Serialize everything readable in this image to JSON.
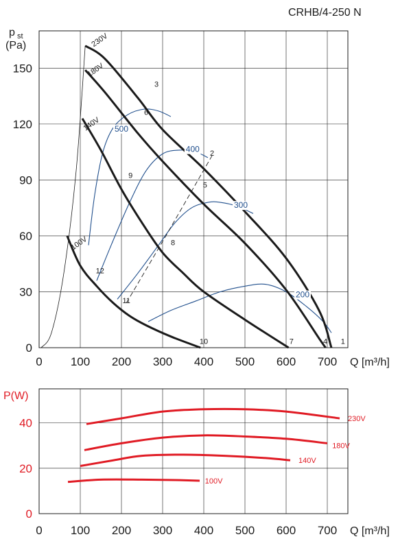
{
  "model": "CRHB/4-250 N",
  "chart_data": [
    {
      "type": "line",
      "ylabel_main": "p",
      "ylabel_sub": "st",
      "ylabel_unit": "(Pa)",
      "xlabel": "Q [m³/h]",
      "xlim": [
        0,
        750
      ],
      "ylim": [
        0,
        170
      ],
      "xticks": [
        0,
        100,
        200,
        300,
        400,
        500,
        600,
        700
      ],
      "yticks": [
        0,
        30,
        60,
        90,
        120,
        150
      ],
      "grid": true,
      "speed_curves": [
        {
          "name": "230V",
          "points": [
            [
              112,
              162
            ],
            [
              160,
              155
            ],
            [
              240,
              134
            ],
            [
              300,
              117
            ],
            [
              400,
              96
            ],
            [
              500,
              73
            ],
            [
              600,
              48
            ],
            [
              680,
              20
            ],
            [
              710,
              0
            ]
          ]
        },
        {
          "name": "180V",
          "points": [
            [
              112,
              149
            ],
            [
              160,
              137
            ],
            [
              240,
              115
            ],
            [
              300,
              100
            ],
            [
              400,
              77
            ],
            [
              500,
              56
            ],
            [
              600,
              31
            ],
            [
              680,
              5
            ],
            [
              696,
              0
            ]
          ]
        },
        {
          "name": "140V",
          "points": [
            [
              105,
              123
            ],
            [
              150,
              106
            ],
            [
              200,
              85
            ],
            [
              250,
              67
            ],
            [
              300,
              51
            ],
            [
              350,
              40
            ],
            [
              400,
              30
            ],
            [
              500,
              15
            ],
            [
              606,
              0
            ]
          ]
        },
        {
          "name": "100V",
          "points": [
            [
              68,
              60
            ],
            [
              100,
              44
            ],
            [
              140,
              33
            ],
            [
              180,
              24
            ],
            [
              220,
              17
            ],
            [
              260,
              12
            ],
            [
              320,
              6
            ],
            [
              392,
              0
            ]
          ]
        }
      ],
      "system_curves": [
        {
          "name": "",
          "points": [
            [
              5,
              0
            ],
            [
              30,
              8
            ],
            [
              60,
              40
            ],
            [
              90,
              95
            ],
            [
              112,
              162
            ]
          ]
        }
      ],
      "efficiency_curves": [
        {
          "name": "500",
          "points": [
            [
              120,
              55
            ],
            [
              135,
              82
            ],
            [
              155,
              105
            ],
            [
              180,
              118
            ],
            [
              215,
              125
            ],
            [
              255,
              128
            ],
            [
              290,
              127
            ],
            [
              320,
              124
            ]
          ]
        },
        {
          "name": "400",
          "points": [
            [
              140,
              36
            ],
            [
              175,
              55
            ],
            [
              220,
              78
            ],
            [
              260,
              95
            ],
            [
              300,
              104
            ],
            [
              340,
              106
            ],
            [
              380,
              105
            ],
            [
              410,
              102
            ]
          ]
        },
        {
          "name": "300",
          "points": [
            [
              190,
              26
            ],
            [
              240,
              40
            ],
            [
              290,
              55
            ],
            [
              330,
              67
            ],
            [
              370,
              75
            ],
            [
              410,
              78
            ],
            [
              440,
              78
            ],
            [
              480,
              76
            ],
            [
              520,
              72
            ]
          ]
        },
        {
          "name": "200",
          "points": [
            [
              265,
              14
            ],
            [
              320,
              20
            ],
            [
              380,
              25
            ],
            [
              440,
              30
            ],
            [
              500,
              33
            ],
            [
              550,
              34
            ],
            [
              600,
              30
            ],
            [
              650,
              22
            ],
            [
              690,
              14
            ],
            [
              710,
              8
            ]
          ]
        }
      ],
      "point_labels": [
        {
          "label": "1",
          "x": 738,
          "y": 2
        },
        {
          "label": "2",
          "x": 420,
          "y": 103
        },
        {
          "label": "3",
          "x": 285,
          "y": 140
        },
        {
          "label": "4",
          "x": 695,
          "y": 2
        },
        {
          "label": "5",
          "x": 403,
          "y": 86
        },
        {
          "label": "6",
          "x": 260,
          "y": 125
        },
        {
          "label": "7",
          "x": 613,
          "y": 2
        },
        {
          "label": "8",
          "x": 325,
          "y": 55
        },
        {
          "label": "9",
          "x": 222,
          "y": 91
        },
        {
          "label": "10",
          "x": 400,
          "y": 2
        },
        {
          "label": "11",
          "x": 212,
          "y": 24
        },
        {
          "label": "12",
          "x": 148,
          "y": 40
        }
      ],
      "voltage_labels": [
        {
          "label": "230V",
          "x": 150,
          "y": 164
        },
        {
          "label": "180V",
          "x": 140,
          "y": 148
        },
        {
          "label": "140V",
          "x": 130,
          "y": 119
        },
        {
          "label": "100V",
          "x": 100,
          "y": 55
        }
      ],
      "efficiency_labels": [
        {
          "label": "500",
          "x": 200,
          "y": 116
        },
        {
          "label": "400",
          "x": 373,
          "y": 105
        },
        {
          "label": "300",
          "x": 490,
          "y": 75
        },
        {
          "label": "200",
          "x": 640,
          "y": 27
        }
      ],
      "operating_line": {
        "points": [
          [
            212,
            24
          ],
          [
            300,
            57
          ],
          [
            420,
            103
          ]
        ]
      }
    },
    {
      "type": "line",
      "ylabel": "P(W)",
      "xlabel": "Q [m³/h]",
      "xlim": [
        0,
        750
      ],
      "ylim": [
        0,
        55
      ],
      "xticks": [
        0,
        100,
        200,
        300,
        400,
        500,
        600,
        700
      ],
      "yticks": [
        0,
        20,
        40
      ],
      "grid": true,
      "series": [
        {
          "name": "230V",
          "points": [
            [
              115,
              39.5
            ],
            [
              200,
              42
            ],
            [
              300,
              45
            ],
            [
              400,
              46
            ],
            [
              500,
              46
            ],
            [
              600,
              45
            ],
            [
              730,
              42
            ]
          ]
        },
        {
          "name": "180V",
          "points": [
            [
              110,
              28
            ],
            [
              200,
              31
            ],
            [
              300,
              33.5
            ],
            [
              400,
              34.5
            ],
            [
              500,
              34
            ],
            [
              600,
              33
            ],
            [
              700,
              31
            ]
          ]
        },
        {
          "name": "140V",
          "points": [
            [
              100,
              21
            ],
            [
              180,
              23.5
            ],
            [
              250,
              25.5
            ],
            [
              350,
              26
            ],
            [
              450,
              25.5
            ],
            [
              550,
              24.5
            ],
            [
              610,
              23.5
            ]
          ]
        },
        {
          "name": "100V",
          "points": [
            [
              70,
              14
            ],
            [
              150,
              15
            ],
            [
              250,
              15
            ],
            [
              330,
              14.8
            ],
            [
              390,
              14.5
            ]
          ]
        }
      ],
      "label_positions": [
        {
          "name": "230V",
          "x": 750,
          "y": 42
        },
        {
          "name": "180V",
          "x": 712,
          "y": 30
        },
        {
          "name": "140V",
          "x": 630,
          "y": 23.5
        },
        {
          "name": "100V",
          "x": 403,
          "y": 14.5
        }
      ]
    }
  ]
}
